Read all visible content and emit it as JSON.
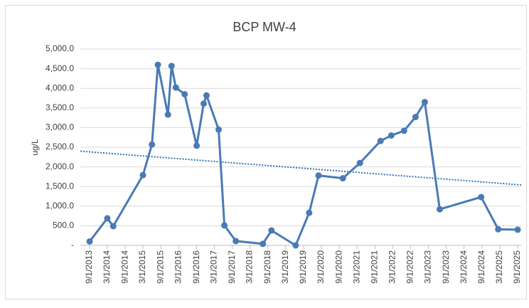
{
  "chart_data": {
    "type": "line",
    "title": "BCP MW-4",
    "y_label": "ug/L",
    "x": [
      "9/1/2013",
      "3/1/2014",
      "5/1/2014",
      "3/1/2015",
      "6/1/2015",
      "8/1/2015",
      "11/12/2015",
      "12/19/2015",
      "2/1/2016",
      "5/1/2016",
      "9/1/2016",
      "11/12/2016",
      "12/11/2016",
      "4/14/2017",
      "6/12/2017",
      "10/7/2017",
      "7/11/2018",
      "10/7/2018",
      "6/12/2019",
      "10/28/2019",
      "2/1/2020",
      "10/7/2020",
      "3/31/2021",
      "10/28/2021",
      "2/15/2022",
      "6/26/2022",
      "10/21/2022",
      "1/24/2023",
      "6/26/2023",
      "8/23/2024",
      "2/14/2025",
      "9/1/2025"
    ],
    "series": [
      {
        "name": "BCP MW-4",
        "color": "#4a7ab5",
        "values": [
          100,
          690,
          490,
          1790,
          2570,
          4600,
          3330,
          4570,
          4020,
          3850,
          2540,
          3610,
          3820,
          2950,
          510,
          110,
          40,
          380,
          0,
          830,
          1780,
          1710,
          2100,
          2660,
          2800,
          2920,
          3270,
          3650,
          920,
          1230,
          410,
          400
        ]
      }
    ],
    "trendline": {
      "color": "#2e75b6",
      "values": [
        2400,
        1540
      ]
    },
    "xlim": [
      "5/29/2013",
      "10/7/2025"
    ],
    "xticks": [
      "9/1/2013",
      "3/1/2014",
      "9/1/2014",
      "3/1/2015",
      "9/1/2015",
      "3/1/2016",
      "9/1/2016",
      "3/1/2017",
      "9/1/2017",
      "3/1/2018",
      "9/1/2018",
      "3/1/2019",
      "9/1/2019",
      "3/1/2020",
      "9/1/2020",
      "3/1/2021",
      "9/1/2021",
      "3/1/2022",
      "9/1/2022",
      "3/1/2023",
      "9/1/2023",
      "3/1/2024",
      "9/1/2024",
      "3/1/2025",
      "9/1/2025"
    ],
    "ylim": [
      0,
      5000
    ],
    "yticks": [
      {
        "value": 0,
        "label": "-"
      },
      {
        "value": 500,
        "label": "500.0"
      },
      {
        "value": 1000,
        "label": "1,000.0"
      },
      {
        "value": 1500,
        "label": "1,500.0"
      },
      {
        "value": 2000,
        "label": "2,000.0"
      },
      {
        "value": 2500,
        "label": "2,500.0"
      },
      {
        "value": 3000,
        "label": "3,000.0"
      },
      {
        "value": 3500,
        "label": "3,500.0"
      },
      {
        "value": 4000,
        "label": "4,000.0"
      },
      {
        "value": 4500,
        "label": "4,500.0"
      },
      {
        "value": 5000,
        "label": "5,000.0"
      }
    ],
    "grid": true
  }
}
